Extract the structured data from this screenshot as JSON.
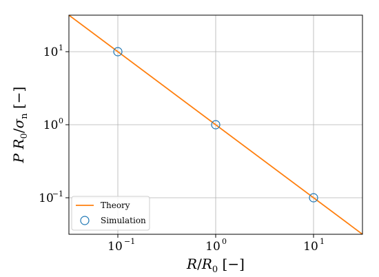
{
  "chart_data": {
    "type": "line",
    "xscale": "log",
    "yscale": "log",
    "xlim": [
      0.03162,
      31.62
    ],
    "ylim": [
      0.03162,
      31.62
    ],
    "grid": true,
    "legend_position": "bottom-left",
    "xlabel": "R/R0 [−]",
    "ylabel": "P R0/σn [−]",
    "x_ticks": [
      {
        "value": 0.1,
        "base": "10",
        "exp": "−1"
      },
      {
        "value": 1,
        "base": "10",
        "exp": "0"
      },
      {
        "value": 10,
        "base": "10",
        "exp": "1"
      }
    ],
    "y_ticks": [
      {
        "value": 0.1,
        "base": "10",
        "exp": "−1"
      },
      {
        "value": 1,
        "base": "10",
        "exp": "0"
      },
      {
        "value": 10,
        "base": "10",
        "exp": "1"
      }
    ],
    "series": [
      {
        "name": "Theory",
        "style": "line",
        "color": "#ff7f0e",
        "x": [
          0.03162,
          31.62
        ],
        "y": [
          31.62,
          0.03162
        ]
      },
      {
        "name": "Simulation",
        "style": "markers",
        "color": "#1f77b4",
        "x": [
          0.1,
          1,
          10
        ],
        "y": [
          10,
          1,
          0.1
        ]
      }
    ]
  }
}
